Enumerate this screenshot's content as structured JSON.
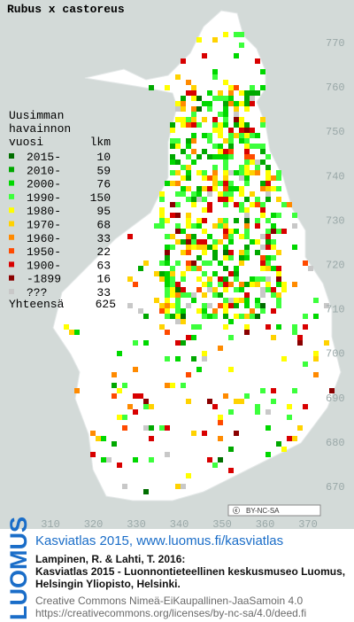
{
  "title": "Rubus x castoreus",
  "legend": {
    "header": [
      "Uusimman",
      "havainnon",
      "vuosi"
    ],
    "count_header": "lkm",
    "items": [
      {
        "label": "2015-",
        "count": 10,
        "color": "#006e00"
      },
      {
        "label": "2010-",
        "count": 59,
        "color": "#00a800"
      },
      {
        "label": "2000-",
        "count": 76,
        "color": "#00d800"
      },
      {
        "label": "1990-",
        "count": 150,
        "color": "#3cff3c"
      },
      {
        "label": "1980-",
        "count": 95,
        "color": "#ffff00"
      },
      {
        "label": "1970-",
        "count": 68,
        "color": "#ffd200"
      },
      {
        "label": "1960-",
        "count": 33,
        "color": "#ff8a00"
      },
      {
        "label": "1950-",
        "count": 22,
        "color": "#ff4a00"
      },
      {
        "label": "1900-",
        "count": 63,
        "color": "#d80000"
      },
      {
        "label": "-1899",
        "count": 16,
        "color": "#8a0000"
      },
      {
        "label": "???",
        "count": 33,
        "color": "#c8c8c8"
      }
    ],
    "total_label": "Yhteensä",
    "total": 625
  },
  "x_labels": [
    310,
    320,
    330,
    340,
    350,
    360,
    370
  ],
  "y_labels": [
    770,
    760,
    750,
    740,
    730,
    720,
    710,
    700,
    690,
    680,
    670
  ],
  "license_badge": "BY-NC-SA",
  "footer": {
    "logo": "LUOMUS",
    "link": "Kasviatlas 2015, www.luomus.fi/kasviatlas",
    "citation": [
      "Lampinen, R. & Lahti, T. 2016:",
      "Kasviatlas 2015 - Luonnontieteellinen keskusmuseo Luomus,",
      "Helsingin Yliopisto, Helsinki."
    ],
    "license": [
      "Creative Commons Nimeä-EiKaupallinen-JaaSamoin 4.0",
      "https://creativecommons.org/licenses/by-nc-sa/4.0/deed.fi"
    ]
  }
}
